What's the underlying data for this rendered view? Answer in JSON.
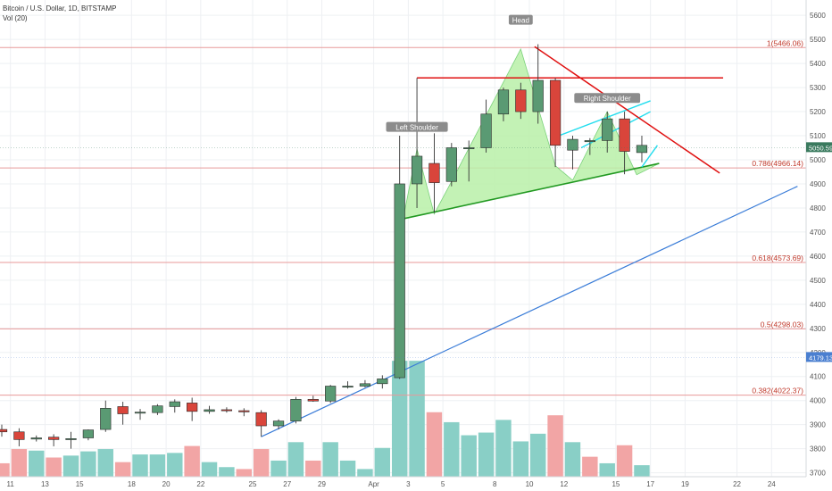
{
  "header": {
    "symbol": "Bitcoin / U.S. Dollar, 1D, BITSTAMP",
    "volume_indicator": "Vol (20)"
  },
  "colors": {
    "up_candle": "#5a9a73",
    "down_candle": "#d9453b",
    "vol_up": "#89cfc6",
    "vol_down": "#f2a5a5",
    "fib_line": "#e89a9a",
    "fib_text": "#c0392b",
    "pattern_fill": "#b8f0a8",
    "pattern_line": "#229922",
    "trend_blue": "#3b7dd8",
    "cyan": "#22ddee",
    "resistance": "#e01010",
    "last_price_tag": "#3a7a5e",
    "blue_price_tag": "#4a7fd0"
  },
  "chart_data": {
    "type": "candlestick",
    "title": "Bitcoin / U.S. Dollar, 1D, BITSTAMP",
    "y_axis": {
      "side": "right",
      "ticks": [
        3700,
        3800,
        3900,
        4000,
        4100,
        4200,
        4300,
        4400,
        4500,
        4600,
        4700,
        4800,
        4900,
        5000,
        5100,
        5200,
        5300,
        5400,
        5500,
        5600
      ],
      "range": [
        3680,
        5660
      ]
    },
    "x_axis": {
      "ticks": [
        {
          "label": "11",
          "day": 0
        },
        {
          "label": "13",
          "day": 2
        },
        {
          "label": "15",
          "day": 4
        },
        {
          "label": "18",
          "day": 7
        },
        {
          "label": "20",
          "day": 9
        },
        {
          "label": "22",
          "day": 11
        },
        {
          "label": "25",
          "day": 14
        },
        {
          "label": "27",
          "day": 16
        },
        {
          "label": "29",
          "day": 18
        },
        {
          "label": "Apr",
          "day": 21
        },
        {
          "label": "3",
          "day": 23
        },
        {
          "label": "5",
          "day": 25
        },
        {
          "label": "8",
          "day": 28
        },
        {
          "label": "10",
          "day": 30
        },
        {
          "label": "12",
          "day": 32
        },
        {
          "label": "15",
          "day": 35
        },
        {
          "label": "17",
          "day": 37
        },
        {
          "label": "19",
          "day": 39
        },
        {
          "label": "22",
          "day": 42
        },
        {
          "label": "24",
          "day": 44
        }
      ],
      "day_range": [
        -0.5,
        46.1
      ]
    },
    "candles": [
      {
        "d": -0.5,
        "o": 3880,
        "h": 3900,
        "l": 3850,
        "c": 3870
      },
      {
        "d": 0.5,
        "o": 3870,
        "h": 3885,
        "l": 3810,
        "c": 3838
      },
      {
        "d": 1.5,
        "o": 3840,
        "h": 3855,
        "l": 3830,
        "c": 3845
      },
      {
        "d": 2.5,
        "o": 3848,
        "h": 3860,
        "l": 3810,
        "c": 3838
      },
      {
        "d": 3.5,
        "o": 3838,
        "h": 3870,
        "l": 3800,
        "c": 3842
      },
      {
        "d": 4.5,
        "o": 3845,
        "h": 3880,
        "l": 3835,
        "c": 3878
      },
      {
        "d": 5.5,
        "o": 3880,
        "h": 4000,
        "l": 3870,
        "c": 3968
      },
      {
        "d": 6.5,
        "o": 3975,
        "h": 3995,
        "l": 3900,
        "c": 3945
      },
      {
        "d": 7.5,
        "o": 3948,
        "h": 3965,
        "l": 3920,
        "c": 3952
      },
      {
        "d": 8.5,
        "o": 3950,
        "h": 3985,
        "l": 3940,
        "c": 3978
      },
      {
        "d": 9.5,
        "o": 3975,
        "h": 4005,
        "l": 3950,
        "c": 3995
      },
      {
        "d": 10.5,
        "o": 3990,
        "h": 4012,
        "l": 3915,
        "c": 3955
      },
      {
        "d": 11.5,
        "o": 3955,
        "h": 3978,
        "l": 3945,
        "c": 3962
      },
      {
        "d": 12.5,
        "o": 3962,
        "h": 3972,
        "l": 3950,
        "c": 3958
      },
      {
        "d": 13.5,
        "o": 3958,
        "h": 3968,
        "l": 3935,
        "c": 3953
      },
      {
        "d": 14.5,
        "o": 3950,
        "h": 3960,
        "l": 3850,
        "c": 3895
      },
      {
        "d": 15.5,
        "o": 3895,
        "h": 3922,
        "l": 3880,
        "c": 3915
      },
      {
        "d": 16.5,
        "o": 3915,
        "h": 4015,
        "l": 3905,
        "c": 4005
      },
      {
        "d": 17.5,
        "o": 4005,
        "h": 4020,
        "l": 3995,
        "c": 3998
      },
      {
        "d": 18.5,
        "o": 3998,
        "h": 4065,
        "l": 3990,
        "c": 4060
      },
      {
        "d": 19.5,
        "o": 4060,
        "h": 4080,
        "l": 4050,
        "c": 4060
      },
      {
        "d": 20.5,
        "o": 4060,
        "h": 4085,
        "l": 4055,
        "c": 4070
      },
      {
        "d": 21.5,
        "o": 4070,
        "h": 4105,
        "l": 4050,
        "c": 4090
      },
      {
        "d": 22.5,
        "o": 4095,
        "h": 5100,
        "l": 4090,
        "c": 4900
      },
      {
        "d": 23.5,
        "o": 4900,
        "h": 5340,
        "l": 4800,
        "c": 5015
      },
      {
        "d": 24.5,
        "o": 4985,
        "h": 5110,
        "l": 4780,
        "c": 4905
      },
      {
        "d": 25.5,
        "o": 4910,
        "h": 5070,
        "l": 4890,
        "c": 5050
      },
      {
        "d": 26.5,
        "o": 5050,
        "h": 5080,
        "l": 4910,
        "c": 5050
      },
      {
        "d": 27.5,
        "o": 5050,
        "h": 5250,
        "l": 5030,
        "c": 5190
      },
      {
        "d": 28.5,
        "o": 5190,
        "h": 5300,
        "l": 5160,
        "c": 5290
      },
      {
        "d": 29.5,
        "o": 5290,
        "h": 5320,
        "l": 5170,
        "c": 5200
      },
      {
        "d": 30.5,
        "o": 5200,
        "h": 5480,
        "l": 5150,
        "c": 5330
      },
      {
        "d": 31.5,
        "o": 5330,
        "h": 5340,
        "l": 4970,
        "c": 5060
      },
      {
        "d": 32.5,
        "o": 5040,
        "h": 5100,
        "l": 4960,
        "c": 5085
      },
      {
        "d": 33.5,
        "o": 5075,
        "h": 5090,
        "l": 5020,
        "c": 5080
      },
      {
        "d": 34.5,
        "o": 5080,
        "h": 5200,
        "l": 5030,
        "c": 5170
      },
      {
        "d": 35.5,
        "o": 5170,
        "h": 5200,
        "l": 4940,
        "c": 5035
      },
      {
        "d": 36.5,
        "o": 5030,
        "h": 5100,
        "l": 4990,
        "c": 5060
      }
    ],
    "volume": [
      {
        "d": -0.5,
        "v": 0.35,
        "up": false
      },
      {
        "d": 0.5,
        "v": 0.72,
        "up": false
      },
      {
        "d": 1.5,
        "v": 0.68,
        "up": true
      },
      {
        "d": 2.5,
        "v": 0.5,
        "up": false
      },
      {
        "d": 3.5,
        "v": 0.55,
        "up": true
      },
      {
        "d": 4.5,
        "v": 0.66,
        "up": true
      },
      {
        "d": 5.5,
        "v": 0.72,
        "up": true
      },
      {
        "d": 6.5,
        "v": 0.38,
        "up": false
      },
      {
        "d": 7.5,
        "v": 0.58,
        "up": true
      },
      {
        "d": 8.5,
        "v": 0.58,
        "up": true
      },
      {
        "d": 9.5,
        "v": 0.62,
        "up": true
      },
      {
        "d": 10.5,
        "v": 0.8,
        "up": false
      },
      {
        "d": 11.5,
        "v": 0.38,
        "up": true
      },
      {
        "d": 12.5,
        "v": 0.25,
        "up": true
      },
      {
        "d": 13.5,
        "v": 0.2,
        "up": false
      },
      {
        "d": 14.5,
        "v": 0.72,
        "up": false
      },
      {
        "d": 15.5,
        "v": 0.42,
        "up": true
      },
      {
        "d": 16.5,
        "v": 0.9,
        "up": true
      },
      {
        "d": 17.5,
        "v": 0.42,
        "up": false
      },
      {
        "d": 18.5,
        "v": 0.9,
        "up": true
      },
      {
        "d": 19.5,
        "v": 0.42,
        "up": true
      },
      {
        "d": 20.5,
        "v": 0.2,
        "up": true
      },
      {
        "d": 21.5,
        "v": 0.75,
        "up": true
      },
      {
        "d": 22.5,
        "v": 3.02,
        "up": true
      },
      {
        "d": 23.5,
        "v": 3.02,
        "up": true
      },
      {
        "d": 24.5,
        "v": 1.68,
        "up": false
      },
      {
        "d": 25.5,
        "v": 1.42,
        "up": true
      },
      {
        "d": 26.5,
        "v": 1.08,
        "up": true
      },
      {
        "d": 27.5,
        "v": 1.15,
        "up": true
      },
      {
        "d": 28.5,
        "v": 1.48,
        "up": true
      },
      {
        "d": 29.5,
        "v": 0.92,
        "up": true
      },
      {
        "d": 30.5,
        "v": 1.12,
        "up": true
      },
      {
        "d": 31.5,
        "v": 1.6,
        "up": false
      },
      {
        "d": 32.5,
        "v": 0.9,
        "up": true
      },
      {
        "d": 33.5,
        "v": 0.52,
        "up": false
      },
      {
        "d": 34.5,
        "v": 0.35,
        "up": true
      },
      {
        "d": 35.5,
        "v": 0.82,
        "up": false
      },
      {
        "d": 36.5,
        "v": 0.3,
        "up": true
      }
    ],
    "fib_levels": [
      {
        "price": 5466.06,
        "label": "1(5466.06)"
      },
      {
        "price": 4966.14,
        "label": "0.786(4966.14)"
      },
      {
        "price": 4573.69,
        "label": "0.618(4573.69)"
      },
      {
        "price": 4298.03,
        "label": "0.5(4298.03)"
      },
      {
        "price": 4022.37,
        "label": "0.382(4022.37)"
      }
    ],
    "annotations": [
      {
        "text": "Left Shoulder",
        "d": 23.5,
        "price": 5135
      },
      {
        "text": "Head",
        "d": 29.5,
        "price": 5580
      },
      {
        "text": "Right Shoulder",
        "d": 34.5,
        "price": 5255
      }
    ],
    "pattern_polygon": [
      [
        22.7,
        4755
      ],
      [
        23.5,
        5045
      ],
      [
        24.5,
        4775
      ],
      [
        25.5,
        4910
      ],
      [
        29.5,
        5460
      ],
      [
        31.5,
        4975
      ],
      [
        32.5,
        4915
      ],
      [
        34.5,
        5200
      ],
      [
        36.2,
        4938
      ],
      [
        37.5,
        4985
      ]
    ],
    "pattern_neckline": [
      [
        22.7,
        4755
      ],
      [
        37.5,
        4985
      ]
    ],
    "cyan_lines": [
      [
        [
          31.7,
          5100
        ],
        [
          37.0,
          5245
        ]
      ],
      [
        [
          33.0,
          5050
        ],
        [
          37.0,
          5200
        ]
      ],
      [
        [
          36.5,
          4970
        ],
        [
          37.4,
          5060
        ]
      ]
    ],
    "resistance_lines": [
      [
        [
          23.5,
          5340
        ],
        [
          41.2,
          5340
        ]
      ],
      [
        [
          30.3,
          5470
        ],
        [
          41.0,
          4945
        ]
      ]
    ],
    "trendline_blue": [
      [
        14.5,
        3850
      ],
      [
        45.5,
        4890
      ]
    ],
    "price_tags": [
      {
        "price": 5050.59,
        "label": "5050.59",
        "style": "last"
      },
      {
        "price": 4179.13,
        "label": "4179.13",
        "style": "blue"
      }
    ]
  }
}
